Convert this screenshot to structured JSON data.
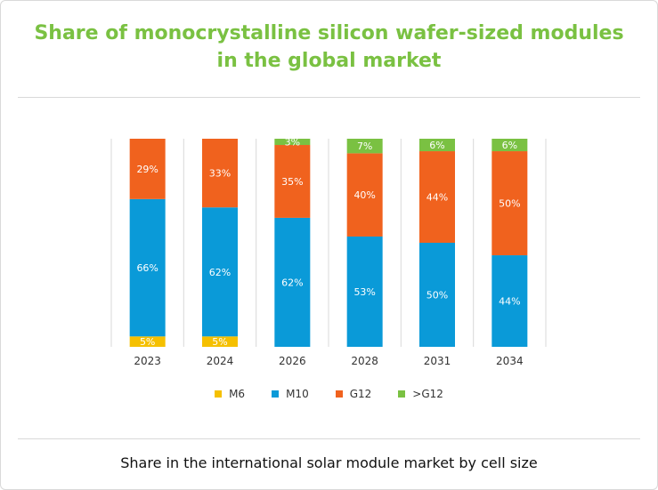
{
  "title_line1": "Share of monocrystalline silicon wafer-sized modules",
  "title_line2": "in the global market",
  "footer": "Share in the international solar module market by cell size",
  "colors": {
    "M6": "#f5c000",
    "M10": "#0a9ad8",
    "G12": "#f0621e",
    ">G12": "#7ac142",
    "title": "#7ac142",
    "grid": "#d9d9d9"
  },
  "chart_data": {
    "type": "bar",
    "stacked": true,
    "categories": [
      "2023",
      "2024",
      "2026",
      "2028",
      "2031",
      "2034"
    ],
    "series": [
      {
        "name": "M6",
        "values": [
          5,
          5,
          0,
          0,
          0,
          0
        ],
        "labels": [
          "5%",
          "5%",
          "",
          "",
          "",
          ""
        ]
      },
      {
        "name": "M10",
        "values": [
          66,
          62,
          62,
          53,
          50,
          44
        ],
        "labels": [
          "66%",
          "62%",
          "62%",
          "53%",
          "50%",
          "44%"
        ]
      },
      {
        "name": "G12",
        "values": [
          29,
          33,
          35,
          40,
          44,
          50
        ],
        "labels": [
          "29%",
          "33%",
          "35%",
          "40%",
          "44%",
          "50%"
        ]
      },
      {
        "name": ">G12",
        "values": [
          0,
          0,
          3,
          7,
          6,
          6
        ],
        "labels": [
          "",
          "",
          "3%",
          "7%",
          "6%",
          "6%"
        ]
      }
    ],
    "ylim": [
      0,
      100
    ],
    "grid": "vertical",
    "legend": "bottom"
  }
}
